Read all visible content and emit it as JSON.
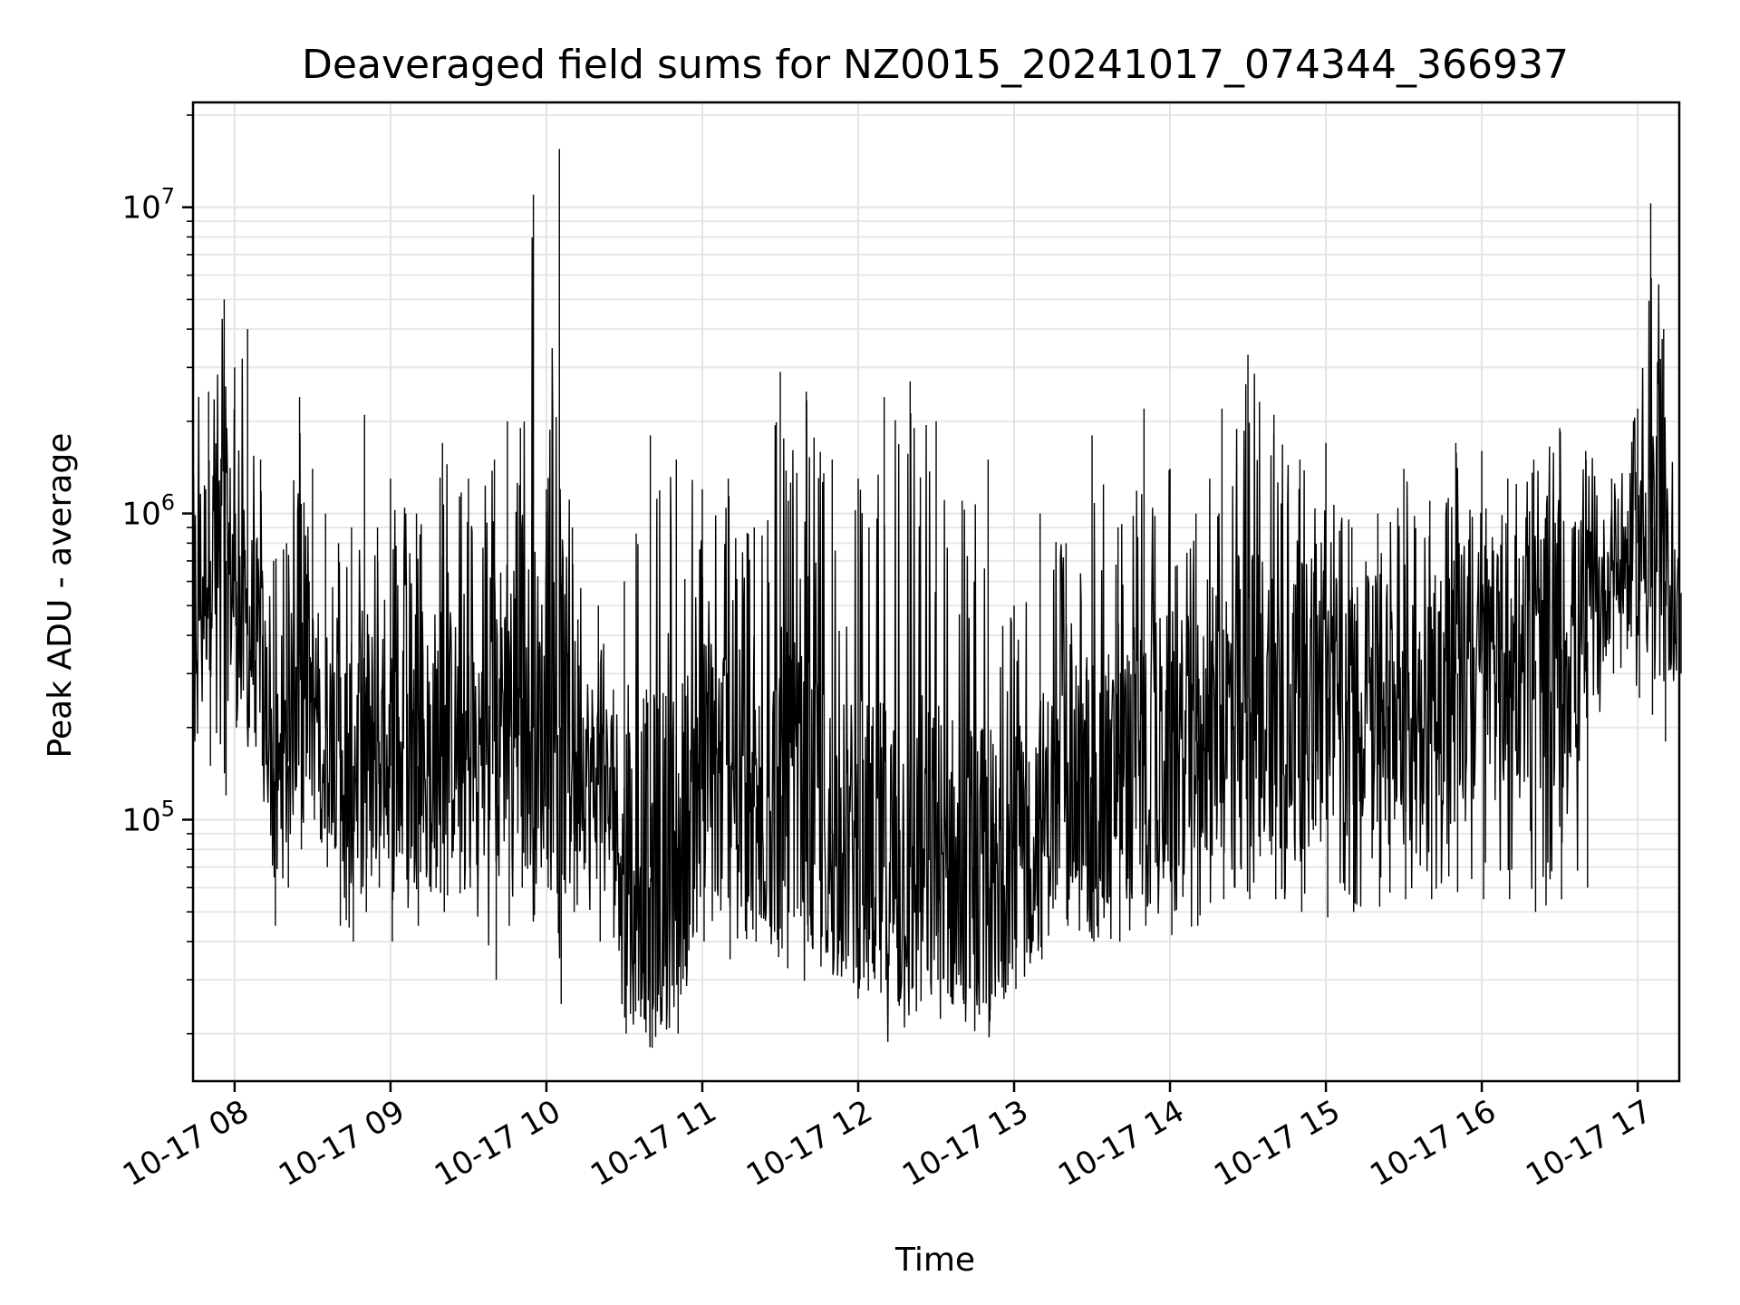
{
  "chart_data": {
    "type": "line",
    "title": "Deaveraged field sums for NZ0015_20241017_074344_366937",
    "xlabel": "Time",
    "ylabel": "Peak ADU - average",
    "yscale": "log",
    "ylim": [
      14000,
      22000000
    ],
    "xlim": [
      "2024-10-17T07:44",
      "2024-10-17T17:16"
    ],
    "grid": true,
    "line_color": "#000000",
    "x_ticks": [
      {
        "t": "2024-10-17T08:00",
        "label": "10-17 08"
      },
      {
        "t": "2024-10-17T09:00",
        "label": "10-17 09"
      },
      {
        "t": "2024-10-17T10:00",
        "label": "10-17 10"
      },
      {
        "t": "2024-10-17T11:00",
        "label": "10-17 11"
      },
      {
        "t": "2024-10-17T12:00",
        "label": "10-17 12"
      },
      {
        "t": "2024-10-17T13:00",
        "label": "10-17 13"
      },
      {
        "t": "2024-10-17T14:00",
        "label": "10-17 14"
      },
      {
        "t": "2024-10-17T15:00",
        "label": "10-17 15"
      },
      {
        "t": "2024-10-17T16:00",
        "label": "10-17 16"
      },
      {
        "t": "2024-10-17T17:00",
        "label": "10-17 17"
      }
    ],
    "y_ticks": [
      {
        "value": 100000,
        "base": "10",
        "exp": "5"
      },
      {
        "value": 1000000,
        "base": "10",
        "exp": "6"
      },
      {
        "value": 10000000,
        "base": "10",
        "exp": "7"
      }
    ],
    "series": [
      {
        "x": [
          "2024-10-17T07:44",
          "2024-10-17T07:50",
          "2024-10-17T07:56",
          "2024-10-17T08:00",
          "2024-10-17T08:05",
          "2024-10-17T08:10",
          "2024-10-17T08:15",
          "2024-10-17T08:20",
          "2024-10-17T08:25",
          "2024-10-17T08:30",
          "2024-10-17T08:35",
          "2024-10-17T08:40",
          "2024-10-17T08:45",
          "2024-10-17T08:50",
          "2024-10-17T08:55",
          "2024-10-17T09:00",
          "2024-10-17T09:10",
          "2024-10-17T09:20",
          "2024-10-17T09:30",
          "2024-10-17T09:40",
          "2024-10-17T09:45",
          "2024-10-17T09:50",
          "2024-10-17T09:55",
          "2024-10-17T10:00",
          "2024-10-17T10:05",
          "2024-10-17T10:10",
          "2024-10-17T10:20",
          "2024-10-17T10:30",
          "2024-10-17T10:40",
          "2024-10-17T10:50",
          "2024-10-17T11:00",
          "2024-10-17T11:10",
          "2024-10-17T11:20",
          "2024-10-17T11:30",
          "2024-10-17T11:40",
          "2024-10-17T11:50",
          "2024-10-17T12:00",
          "2024-10-17T12:10",
          "2024-10-17T12:20",
          "2024-10-17T12:30",
          "2024-10-17T12:40",
          "2024-10-17T12:50",
          "2024-10-17T13:00",
          "2024-10-17T13:10",
          "2024-10-17T13:20",
          "2024-10-17T13:30",
          "2024-10-17T13:40",
          "2024-10-17T13:50",
          "2024-10-17T14:00",
          "2024-10-17T14:10",
          "2024-10-17T14:20",
          "2024-10-17T14:30",
          "2024-10-17T14:40",
          "2024-10-17T14:50",
          "2024-10-17T15:00",
          "2024-10-17T15:10",
          "2024-10-17T15:20",
          "2024-10-17T15:30",
          "2024-10-17T15:40",
          "2024-10-17T15:50",
          "2024-10-17T16:00",
          "2024-10-17T16:10",
          "2024-10-17T16:20",
          "2024-10-17T16:30",
          "2024-10-17T16:40",
          "2024-10-17T16:50",
          "2024-10-17T17:00",
          "2024-10-17T17:05",
          "2024-10-17T17:10",
          "2024-10-17T17:16"
        ],
        "hi": [
          4800000,
          2500000,
          5000000,
          3000000,
          4000000,
          1500000,
          700000,
          800000,
          2400000,
          1400000,
          1000000,
          800000,
          900000,
          2100000,
          900000,
          1300000,
          1000000,
          1700000,
          1300000,
          1500000,
          2000000,
          1900000,
          11000000,
          1200000,
          15500000,
          900000,
          500000,
          600000,
          1800000,
          1500000,
          1200000,
          1300000,
          900000,
          2900000,
          2500000,
          1500000,
          1300000,
          2400000,
          2700000,
          2000000,
          1100000,
          1500000,
          500000,
          1000000,
          800000,
          1800000,
          900000,
          2200000,
          1400000,
          1000000,
          2200000,
          3300000,
          2100000,
          1500000,
          1700000,
          900000,
          1000000,
          1400000,
          1100000,
          1700000,
          1600000,
          1300000,
          1500000,
          1900000,
          1600000,
          1300000,
          2200000,
          10300000,
          4000000,
          700000
        ],
        "lo": [
          180000,
          150000,
          120000,
          200000,
          200000,
          150000,
          45000,
          60000,
          80000,
          100000,
          70000,
          45000,
          40000,
          50000,
          60000,
          40000,
          45000,
          50000,
          60000,
          30000,
          45000,
          60000,
          80000,
          60000,
          25000,
          50000,
          40000,
          20000,
          18000,
          20000,
          40000,
          35000,
          40000,
          38000,
          40000,
          35000,
          30000,
          30000,
          28000,
          30000,
          25000,
          22000,
          28000,
          35000,
          45000,
          40000,
          40000,
          45000,
          42000,
          45000,
          55000,
          55000,
          55000,
          50000,
          48000,
          50000,
          52000,
          55000,
          55000,
          58000,
          55000,
          55000,
          50000,
          55000,
          60000,
          300000,
          250000,
          220000,
          180000,
          300000
        ],
        "mid": [
          500000,
          700000,
          700000,
          600000,
          400000,
          400000,
          120000,
          150000,
          350000,
          250000,
          200000,
          180000,
          150000,
          180000,
          180000,
          150000,
          150000,
          200000,
          160000,
          180000,
          300000,
          250000,
          200000,
          200000,
          200000,
          180000,
          130000,
          90000,
          70000,
          80000,
          150000,
          150000,
          110000,
          120000,
          100000,
          90000,
          80000,
          70000,
          70000,
          75000,
          70000,
          60000,
          80000,
          100000,
          120000,
          130000,
          140000,
          150000,
          170000,
          180000,
          220000,
          250000,
          260000,
          250000,
          250000,
          260000,
          260000,
          270000,
          280000,
          300000,
          300000,
          310000,
          330000,
          360000,
          380000,
          650000,
          800000,
          900000,
          600000,
          550000
        ]
      }
    ]
  }
}
